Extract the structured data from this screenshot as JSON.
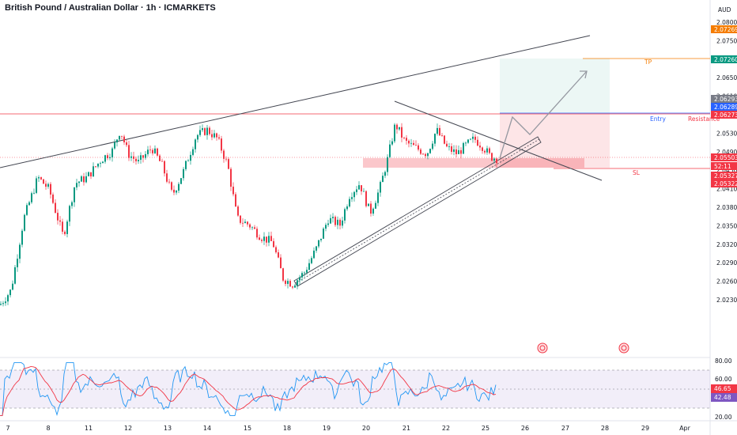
{
  "chart_data": {
    "type": "candlestick",
    "title": "British Pound / Australian Dollar · 1h · ICMARKETS",
    "currency": "AUD",
    "y_ticks": [
      "2.08000",
      "2.07500",
      "2.07000",
      "2.06500",
      "2.06100",
      "2.05700",
      "2.05300",
      "2.04900",
      "2.04500",
      "2.04100",
      "2.03800",
      "2.03500",
      "2.03200",
      "2.02900",
      "2.02600",
      "2.02300"
    ],
    "x_ticks": [
      "7",
      "8",
      "11",
      "12",
      "13",
      "14",
      "15",
      "18",
      "19",
      "20",
      "21",
      "22",
      "25",
      "26",
      "27",
      "28",
      "29",
      "Apr"
    ],
    "price_tags": [
      {
        "label": "2.07269",
        "color": "#f57c00"
      },
      {
        "label": "2.07260",
        "color": "#089981"
      },
      {
        "label": "2.06293",
        "color": "#787b86"
      },
      {
        "label": "2.06289",
        "color": "#2962ff"
      },
      {
        "label": "2.06273",
        "color": "#f23645"
      },
      {
        "label": "2.05503",
        "color": "#f23645"
      },
      {
        "label": "52:11",
        "color": "#f23645"
      },
      {
        "label": "2.05327",
        "color": "#f23645"
      },
      {
        "label": "2.05322",
        "color": "#f23645"
      }
    ],
    "levels": {
      "tp": 2.0726,
      "entry": 2.0629,
      "resistance": 2.0627,
      "sl": 2.0532,
      "last": 2.055
    },
    "annotations": {
      "tp": "TP",
      "entry": "Entry",
      "resistance": "Resistance",
      "sl": "SL"
    },
    "candles": {
      "anchors": [
        [
          0,
          2.0305
        ],
        [
          14,
          2.033
        ],
        [
          30,
          2.045
        ],
        [
          48,
          2.052
        ],
        [
          62,
          2.05
        ],
        [
          80,
          2.042
        ],
        [
          95,
          2.051
        ],
        [
          110,
          2.052
        ],
        [
          128,
          2.055
        ],
        [
          142,
          2.0565
        ],
        [
          152,
          2.06
        ],
        [
          162,
          2.056
        ],
        [
          175,
          2.0545
        ],
        [
          192,
          2.057
        ],
        [
          205,
          2.054
        ],
        [
          218,
          2.049
        ],
        [
          232,
          2.053
        ],
        [
          248,
          2.059
        ],
        [
          262,
          2.06
        ],
        [
          275,
          2.0585
        ],
        [
          288,
          2.054
        ],
        [
          300,
          2.045
        ],
        [
          315,
          2.044
        ],
        [
          330,
          2.042
        ],
        [
          345,
          2.041
        ],
        [
          358,
          2.035
        ],
        [
          370,
          2.034
        ],
        [
          385,
          2.036
        ],
        [
          400,
          2.04
        ],
        [
          415,
          2.045
        ],
        [
          430,
          2.044
        ],
        [
          442,
          2.049
        ],
        [
          455,
          2.051
        ],
        [
          468,
          2.046
        ],
        [
          480,
          2.05
        ],
        [
          490,
          2.055
        ],
        [
          500,
          2.061
        ],
        [
          512,
          2.058
        ],
        [
          525,
          2.057
        ],
        [
          540,
          2.056
        ],
        [
          552,
          2.06
        ],
        [
          565,
          2.057
        ],
        [
          578,
          2.056
        ],
        [
          590,
          2.0575
        ],
        [
          600,
          2.0585
        ],
        [
          612,
          2.057
        ],
        [
          620,
          2.0555
        ],
        [
          628,
          2.0552
        ]
      ],
      "up_color": "#089981",
      "down_color": "#f23645"
    },
    "rsi": {
      "y_ticks": [
        "80.00",
        "60.00",
        "20.00"
      ],
      "value": "46.65",
      "ma_value": "42.48",
      "upper": 70,
      "lower": 30
    }
  }
}
